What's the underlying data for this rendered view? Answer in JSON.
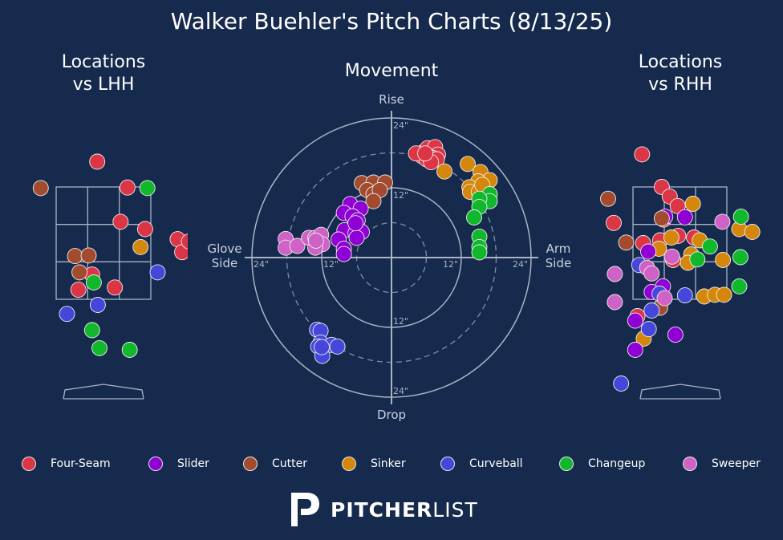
{
  "title": "Walker Buehler's Pitch Charts (8/13/25)",
  "panels": {
    "lhh_title": "Locations\nvs LHH",
    "movement_title": "Movement",
    "rhh_title": "Locations\nvs RHH"
  },
  "movement_labels": {
    "top": "Rise",
    "bottom": "Drop",
    "left": "Glove\nSide",
    "right": "Arm\nSide",
    "ring_tick": "12\"",
    "outer_tick": "24\""
  },
  "brand": {
    "strong": "PITCHER",
    "light": "LIST"
  },
  "pitch_types": [
    {
      "name": "Four-Seam",
      "color": "#dc3545"
    },
    {
      "name": "Slider",
      "color": "#8f00d4"
    },
    {
      "name": "Cutter",
      "color": "#a34b2f"
    },
    {
      "name": "Sinker",
      "color": "#d4870a"
    },
    {
      "name": "Curveball",
      "color": "#4447d9"
    },
    {
      "name": "Changeup",
      "color": "#12b82c"
    },
    {
      "name": "Sweeper",
      "color": "#cf62c6"
    }
  ],
  "chart_data": [
    {
      "type": "scatter",
      "title": "Locations vs LHH",
      "x_unit": "feet (catcher view)",
      "z_unit": "feet",
      "points": [
        {
          "pitch": "Four-Seam",
          "x": -0.11,
          "z": 3.95
        },
        {
          "pitch": "Four-Seam",
          "x": 0.42,
          "z": 3.49
        },
        {
          "pitch": "Four-Seam",
          "x": 0.3,
          "z": 2.88
        },
        {
          "pitch": "Four-Seam",
          "x": 0.73,
          "z": 2.75
        },
        {
          "pitch": "Four-Seam",
          "x": 1.3,
          "z": 2.57
        },
        {
          "pitch": "Four-Seam",
          "x": 1.38,
          "z": 2.34
        },
        {
          "pitch": "Four-Seam",
          "x": 1.5,
          "z": 2.53
        },
        {
          "pitch": "Four-Seam",
          "x": -0.2,
          "z": 1.94
        },
        {
          "pitch": "Four-Seam",
          "x": -0.44,
          "z": 1.67
        },
        {
          "pitch": "Four-Seam",
          "x": 0.2,
          "z": 1.71
        },
        {
          "pitch": "Cutter",
          "x": -1.1,
          "z": 3.48
        },
        {
          "pitch": "Cutter",
          "x": -0.5,
          "z": 2.27
        },
        {
          "pitch": "Cutter",
          "x": -0.26,
          "z": 2.28
        },
        {
          "pitch": "Cutter",
          "x": -0.42,
          "z": 1.98
        },
        {
          "pitch": "Changeup",
          "x": 0.77,
          "z": 3.48
        },
        {
          "pitch": "Changeup",
          "x": -0.17,
          "z": 1.8
        },
        {
          "pitch": "Changeup",
          "x": -0.2,
          "z": 0.95
        },
        {
          "pitch": "Changeup",
          "x": -0.07,
          "z": 0.63
        },
        {
          "pitch": "Changeup",
          "x": 0.46,
          "z": 0.6
        },
        {
          "pitch": "Sinker",
          "x": 0.65,
          "z": 2.43
        },
        {
          "pitch": "Curveball",
          "x": 0.95,
          "z": 1.98
        },
        {
          "pitch": "Curveball",
          "x": -0.1,
          "z": 1.4
        },
        {
          "pitch": "Curveball",
          "x": -0.64,
          "z": 1.24
        }
      ]
    },
    {
      "type": "scatter",
      "title": "Movement",
      "x_unit": "inches (horizontal break)",
      "y_unit": "inches (induced vertical break)",
      "ring_radii": [
        6,
        12,
        18,
        24
      ],
      "points": [
        {
          "pitch": "Four-Seam",
          "x": 5.6,
          "y": 18.2
        },
        {
          "pitch": "Four-Seam",
          "x": 6.2,
          "y": 18.8
        },
        {
          "pitch": "Four-Seam",
          "x": 6.9,
          "y": 18.0
        },
        {
          "pitch": "Four-Seam",
          "x": 7.5,
          "y": 19.0
        },
        {
          "pitch": "Four-Seam",
          "x": 8.0,
          "y": 17.7
        },
        {
          "pitch": "Four-Seam",
          "x": 5.3,
          "y": 17.4
        },
        {
          "pitch": "Four-Seam",
          "x": 6.0,
          "y": 16.9
        },
        {
          "pitch": "Four-Seam",
          "x": 6.4,
          "y": 17.4
        },
        {
          "pitch": "Four-Seam",
          "x": 7.1,
          "y": 17.1
        },
        {
          "pitch": "Four-Seam",
          "x": 7.8,
          "y": 16.9
        },
        {
          "pitch": "Four-Seam",
          "x": 4.2,
          "y": 17.9
        },
        {
          "pitch": "Four-Seam",
          "x": 6.8,
          "y": 16.4
        },
        {
          "pitch": "Four-Seam",
          "x": 5.8,
          "y": 17.9
        },
        {
          "pitch": "Sinker",
          "x": 13.1,
          "y": 16.1
        },
        {
          "pitch": "Sinker",
          "x": 15.3,
          "y": 14.7
        },
        {
          "pitch": "Sinker",
          "x": 16.9,
          "y": 13.3
        },
        {
          "pitch": "Sinker",
          "x": 14.9,
          "y": 13.1
        },
        {
          "pitch": "Sinker",
          "x": 13.4,
          "y": 12.1
        },
        {
          "pitch": "Sinker",
          "x": 13.5,
          "y": 11.3
        },
        {
          "pitch": "Sinker",
          "x": 15.0,
          "y": 11.3
        },
        {
          "pitch": "Sinker",
          "x": 9.1,
          "y": 14.8
        },
        {
          "pitch": "Sinker",
          "x": 15.6,
          "y": 12.5
        },
        {
          "pitch": "Changeup",
          "x": 16.9,
          "y": 10.9
        },
        {
          "pitch": "Changeup",
          "x": 16.9,
          "y": 9.7
        },
        {
          "pitch": "Changeup",
          "x": 15.1,
          "y": 10.1
        },
        {
          "pitch": "Changeup",
          "x": 15.1,
          "y": 8.7
        },
        {
          "pitch": "Changeup",
          "x": 14.2,
          "y": 6.9
        },
        {
          "pitch": "Changeup",
          "x": 15.1,
          "y": 3.6
        },
        {
          "pitch": "Changeup",
          "x": 15.1,
          "y": 1.8
        },
        {
          "pitch": "Changeup",
          "x": 15.1,
          "y": 0.9
        },
        {
          "pitch": "Cutter",
          "x": -5.1,
          "y": 12.8
        },
        {
          "pitch": "Cutter",
          "x": -3.1,
          "y": 12.9
        },
        {
          "pitch": "Cutter",
          "x": -1.1,
          "y": 12.9
        },
        {
          "pitch": "Cutter",
          "x": -4.2,
          "y": 11.6
        },
        {
          "pitch": "Cutter",
          "x": -3.1,
          "y": 10.9
        },
        {
          "pitch": "Cutter",
          "x": -2.0,
          "y": 11.6
        },
        {
          "pitch": "Cutter",
          "x": -3.1,
          "y": 9.7
        },
        {
          "pitch": "Slider",
          "x": -7.1,
          "y": 9.2
        },
        {
          "pitch": "Slider",
          "x": -5.3,
          "y": 8.4
        },
        {
          "pitch": "Slider",
          "x": -8.2,
          "y": 7.7
        },
        {
          "pitch": "Slider",
          "x": -6.7,
          "y": 7.1
        },
        {
          "pitch": "Slider",
          "x": -5.8,
          "y": 6.4
        },
        {
          "pitch": "Slider",
          "x": -8.1,
          "y": 4.7
        },
        {
          "pitch": "Slider",
          "x": -6.2,
          "y": 4.2
        },
        {
          "pitch": "Slider",
          "x": -5.1,
          "y": 4.4
        },
        {
          "pitch": "Slider",
          "x": -6.0,
          "y": 3.4
        },
        {
          "pitch": "Slider",
          "x": -9.1,
          "y": 3.1
        },
        {
          "pitch": "Slider",
          "x": -8.2,
          "y": 1.5
        },
        {
          "pitch": "Slider",
          "x": -8.2,
          "y": 0.6
        },
        {
          "pitch": "Slider",
          "x": -6.2,
          "y": 5.9
        },
        {
          "pitch": "Sweeper",
          "x": -18.2,
          "y": 3.2
        },
        {
          "pitch": "Sweeper",
          "x": -18.2,
          "y": 1.7
        },
        {
          "pitch": "Sweeper",
          "x": -16.2,
          "y": 2.0
        },
        {
          "pitch": "Sweeper",
          "x": -14.2,
          "y": 3.4
        },
        {
          "pitch": "Sweeper",
          "x": -13.1,
          "y": 3.4
        },
        {
          "pitch": "Sweeper",
          "x": -12.1,
          "y": 3.9
        },
        {
          "pitch": "Sweeper",
          "x": -11.9,
          "y": 2.3
        },
        {
          "pitch": "Sweeper",
          "x": -13.1,
          "y": 1.7
        },
        {
          "pitch": "Sweeper",
          "x": -13.0,
          "y": 2.9
        },
        {
          "pitch": "Curveball",
          "x": -12.8,
          "y": -12.4
        },
        {
          "pitch": "Curveball",
          "x": -12.2,
          "y": -12.6
        },
        {
          "pitch": "Curveball",
          "x": -12.2,
          "y": -14.6
        },
        {
          "pitch": "Curveball",
          "x": -12.6,
          "y": -15.3
        },
        {
          "pitch": "Curveball",
          "x": -11.9,
          "y": -16.9
        },
        {
          "pitch": "Curveball",
          "x": -10.3,
          "y": -15.0
        },
        {
          "pitch": "Curveball",
          "x": -9.3,
          "y": -15.3
        },
        {
          "pitch": "Curveball",
          "x": -12.0,
          "y": -15.4
        }
      ]
    },
    {
      "type": "scatter",
      "title": "Locations vs RHH",
      "x_unit": "feet (catcher view)",
      "z_unit": "feet",
      "points": [
        {
          "pitch": "Four-Seam",
          "x": -0.67,
          "z": 4.08
        },
        {
          "pitch": "Four-Seam",
          "x": -0.32,
          "z": 3.5
        },
        {
          "pitch": "Four-Seam",
          "x": -0.18,
          "z": 3.33
        },
        {
          "pitch": "Four-Seam",
          "x": -0.04,
          "z": 3.16
        },
        {
          "pitch": "Four-Seam",
          "x": -1.17,
          "z": 2.86
        },
        {
          "pitch": "Four-Seam",
          "x": -0.29,
          "z": 2.92
        },
        {
          "pitch": "Four-Seam",
          "x": -0.03,
          "z": 2.63
        },
        {
          "pitch": "Four-Seam",
          "x": 0.25,
          "z": 2.6
        },
        {
          "pitch": "Four-Seam",
          "x": -0.65,
          "z": 2.5
        },
        {
          "pitch": "Four-Seam",
          "x": -0.35,
          "z": 2.55
        },
        {
          "pitch": "Four-Seam",
          "x": -0.12,
          "z": 2.2
        },
        {
          "pitch": "Four-Seam",
          "x": -0.75,
          "z": 1.2
        },
        {
          "pitch": "Sinker",
          "x": 0.23,
          "z": 3.2
        },
        {
          "pitch": "Sinker",
          "x": -0.15,
          "z": 2.6
        },
        {
          "pitch": "Sinker",
          "x": 0.35,
          "z": 2.55
        },
        {
          "pitch": "Sinker",
          "x": 1.05,
          "z": 2.75
        },
        {
          "pitch": "Sinker",
          "x": 1.28,
          "z": 2.7
        },
        {
          "pitch": "Sinker",
          "x": -0.37,
          "z": 2.4
        },
        {
          "pitch": "Sinker",
          "x": 0.2,
          "z": 2.3
        },
        {
          "pitch": "Sinker",
          "x": 0.14,
          "z": 2.15
        },
        {
          "pitch": "Sinker",
          "x": 0.76,
          "z": 2.2
        },
        {
          "pitch": "Sinker",
          "x": 0.43,
          "z": 1.55
        },
        {
          "pitch": "Sinker",
          "x": 0.62,
          "z": 1.58
        },
        {
          "pitch": "Sinker",
          "x": 0.78,
          "z": 1.58
        },
        {
          "pitch": "Sinker",
          "x": -0.64,
          "z": 0.8
        },
        {
          "pitch": "Changeup",
          "x": 1.08,
          "z": 2.97
        },
        {
          "pitch": "Changeup",
          "x": 0.53,
          "z": 2.44
        },
        {
          "pitch": "Changeup",
          "x": 1.07,
          "z": 2.25
        },
        {
          "pitch": "Changeup",
          "x": 1.05,
          "z": 1.73
        },
        {
          "pitch": "Changeup",
          "x": 0.31,
          "z": 2.21
        },
        {
          "pitch": "Slider",
          "x": -0.26,
          "z": 2.97
        },
        {
          "pitch": "Slider",
          "x": -0.56,
          "z": 2.35
        },
        {
          "pitch": "Slider",
          "x": -0.3,
          "z": 1.73
        },
        {
          "pitch": "Slider",
          "x": -0.5,
          "z": 1.63
        },
        {
          "pitch": "Slider",
          "x": 0.09,
          "z": 2.96
        },
        {
          "pitch": "Slider",
          "x": -0.79,
          "z": 1.12
        },
        {
          "pitch": "Slider",
          "x": -0.79,
          "z": 0.6
        },
        {
          "pitch": "Slider",
          "x": -0.08,
          "z": 0.87
        },
        {
          "pitch": "Cutter",
          "x": -1.27,
          "z": 3.29
        },
        {
          "pitch": "Cutter",
          "x": -0.95,
          "z": 2.51
        },
        {
          "pitch": "Cutter",
          "x": -0.35,
          "z": 1.35
        },
        {
          "pitch": "Cutter",
          "x": -0.32,
          "z": 2.94
        },
        {
          "pitch": "Curveball",
          "x": -0.72,
          "z": 2.11
        },
        {
          "pitch": "Curveball",
          "x": -0.36,
          "z": 1.6
        },
        {
          "pitch": "Curveball",
          "x": -0.5,
          "z": 1.3
        },
        {
          "pitch": "Curveball",
          "x": 0.09,
          "z": 1.57
        },
        {
          "pitch": "Curveball",
          "x": -0.55,
          "z": 0.97
        },
        {
          "pitch": "Curveball",
          "x": -1.04,
          "z": 0.0
        },
        {
          "pitch": "Sweeper",
          "x": 0.75,
          "z": 2.88
        },
        {
          "pitch": "Sweeper",
          "x": -1.15,
          "z": 1.95
        },
        {
          "pitch": "Sweeper",
          "x": -0.58,
          "z": 2.06
        },
        {
          "pitch": "Sweeper",
          "x": -0.5,
          "z": 1.96
        },
        {
          "pitch": "Sweeper",
          "x": -0.14,
          "z": 2.26
        },
        {
          "pitch": "Sweeper",
          "x": -1.15,
          "z": 1.45
        },
        {
          "pitch": "Sweeper",
          "x": -0.27,
          "z": 1.52
        }
      ]
    }
  ]
}
